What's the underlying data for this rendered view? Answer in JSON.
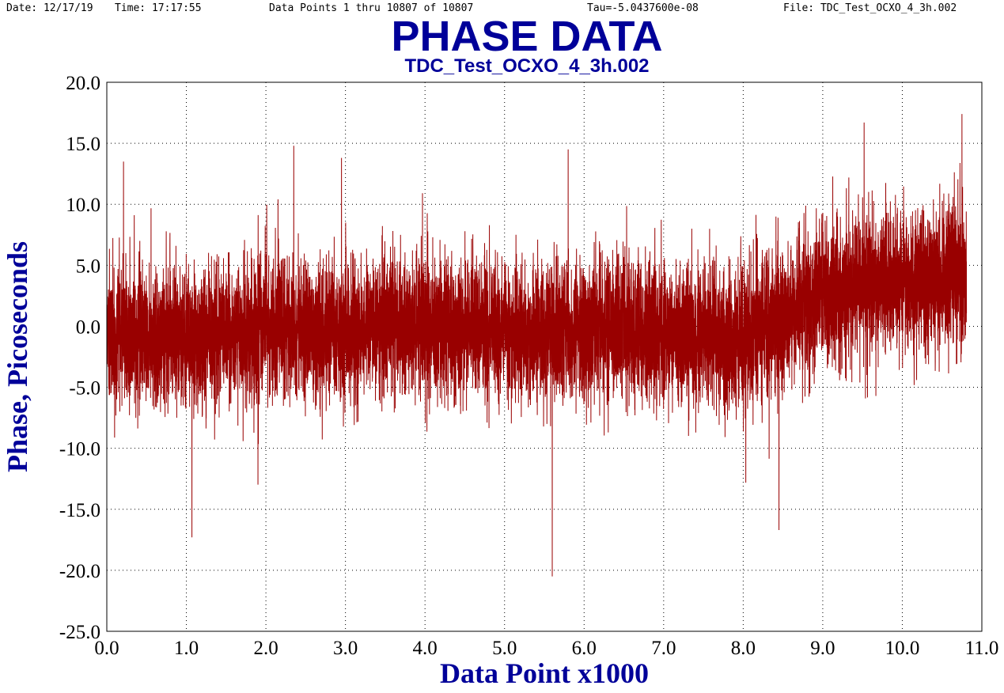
{
  "header": {
    "date_text": "Date: 12/17/19",
    "time_text": "Time: 17:17:55",
    "points_text": "Data Points 1 thru 10807 of 10807",
    "tau_text": "Tau=-5.0437600e-08",
    "file_text": "File: TDC_Test_OCXO_4_3h.002"
  },
  "chart_data": {
    "type": "line",
    "title": "PHASE DATA",
    "subtitle": "TDC_Test_OCXO_4_3h.002",
    "xlabel": "Data Point x1000",
    "ylabel": "Phase, Picoseconds",
    "xlim": [
      0,
      11
    ],
    "ylim": [
      -25,
      20
    ],
    "x_ticks": [
      "0.0",
      "1.0",
      "2.0",
      "3.0",
      "4.0",
      "5.0",
      "6.0",
      "7.0",
      "8.0",
      "9.0",
      "10.0",
      "11.0"
    ],
    "y_ticks": [
      "20.0",
      "15.0",
      "10.0",
      "5.0",
      "0.0",
      "-5.0",
      "-10.0",
      "-15.0",
      "-20.0",
      "-25.0"
    ],
    "grid": true,
    "grid_style": "dotted",
    "n_points": 10807,
    "x_end": 10.807,
    "series": [
      {
        "color": "#990000",
        "description_of_shape": "dense noise around a slowly wandering mean",
        "mean_envelope": [
          [
            0.0,
            -0.5
          ],
          [
            0.5,
            -0.8
          ],
          [
            1.0,
            -1.0
          ],
          [
            1.5,
            -0.5
          ],
          [
            2.0,
            0.0
          ],
          [
            2.5,
            0.0
          ],
          [
            3.0,
            -0.5
          ],
          [
            3.5,
            0.5
          ],
          [
            4.0,
            0.0
          ],
          [
            4.5,
            0.0
          ],
          [
            5.0,
            -0.5
          ],
          [
            5.5,
            -0.5
          ],
          [
            6.0,
            -0.5
          ],
          [
            6.5,
            0.0
          ],
          [
            7.0,
            -0.5
          ],
          [
            7.5,
            -1.0
          ],
          [
            8.0,
            -1.0
          ],
          [
            8.5,
            0.5
          ],
          [
            9.0,
            2.5
          ],
          [
            9.5,
            3.5
          ],
          [
            10.0,
            3.5
          ],
          [
            10.5,
            4.0
          ],
          [
            10.807,
            4.0
          ]
        ],
        "noise_sigma": 2.8,
        "extremes": [
          {
            "x": 0.21,
            "y": 13.5
          },
          {
            "x": 1.07,
            "y": -17.3
          },
          {
            "x": 2.35,
            "y": 14.8
          },
          {
            "x": 2.95,
            "y": 13.8
          },
          {
            "x": 5.6,
            "y": -20.5
          },
          {
            "x": 5.8,
            "y": 14.5
          },
          {
            "x": 8.45,
            "y": -16.7
          },
          {
            "x": 9.52,
            "y": 16.7
          },
          {
            "x": 10.75,
            "y": 17.4
          }
        ]
      }
    ]
  }
}
